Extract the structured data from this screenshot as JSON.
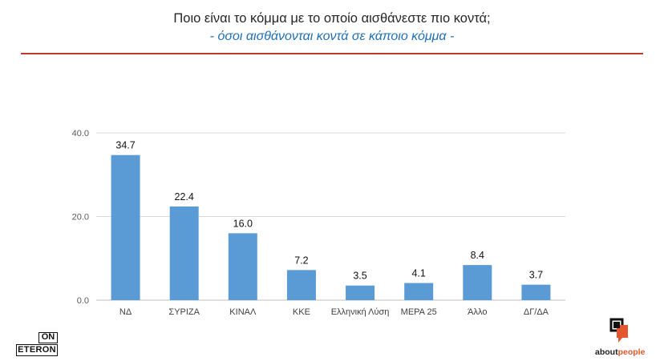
{
  "header": {
    "title": "Ποιο είναι το κόμμα με το οποίο αισθάνεστε πιο κοντά;",
    "subtitle": "- όσοι αισθάνονται κοντά σε κάποιο κόμμα -"
  },
  "chart_data": {
    "type": "bar",
    "categories": [
      "ΝΔ",
      "ΣΥΡΙΖΑ",
      "ΚΙΝΑΛ",
      "ΚΚΕ",
      "Ελληνική Λύση",
      "ΜΕΡΑ 25",
      "Άλλο",
      "ΔΓ/ΔΑ"
    ],
    "values": [
      34.7,
      22.4,
      16.0,
      7.2,
      3.5,
      4.1,
      8.4,
      3.7
    ],
    "value_labels": [
      "34.7",
      "22.4",
      "16.0",
      "7.2",
      "3.5",
      "4.1",
      "8.4",
      "3.7"
    ],
    "yticks": [
      "0.0",
      "20.0",
      "40.0"
    ],
    "ytick_values": [
      0,
      20,
      40
    ],
    "ylim": [
      0,
      40
    ],
    "grid": true,
    "bar_color": "#5b9bd5"
  },
  "logos": {
    "left_top": "ON",
    "left_bottom": "ETERON",
    "right_prefix": "about",
    "right_suffix": "people",
    "accent_color": "#e4572e"
  }
}
